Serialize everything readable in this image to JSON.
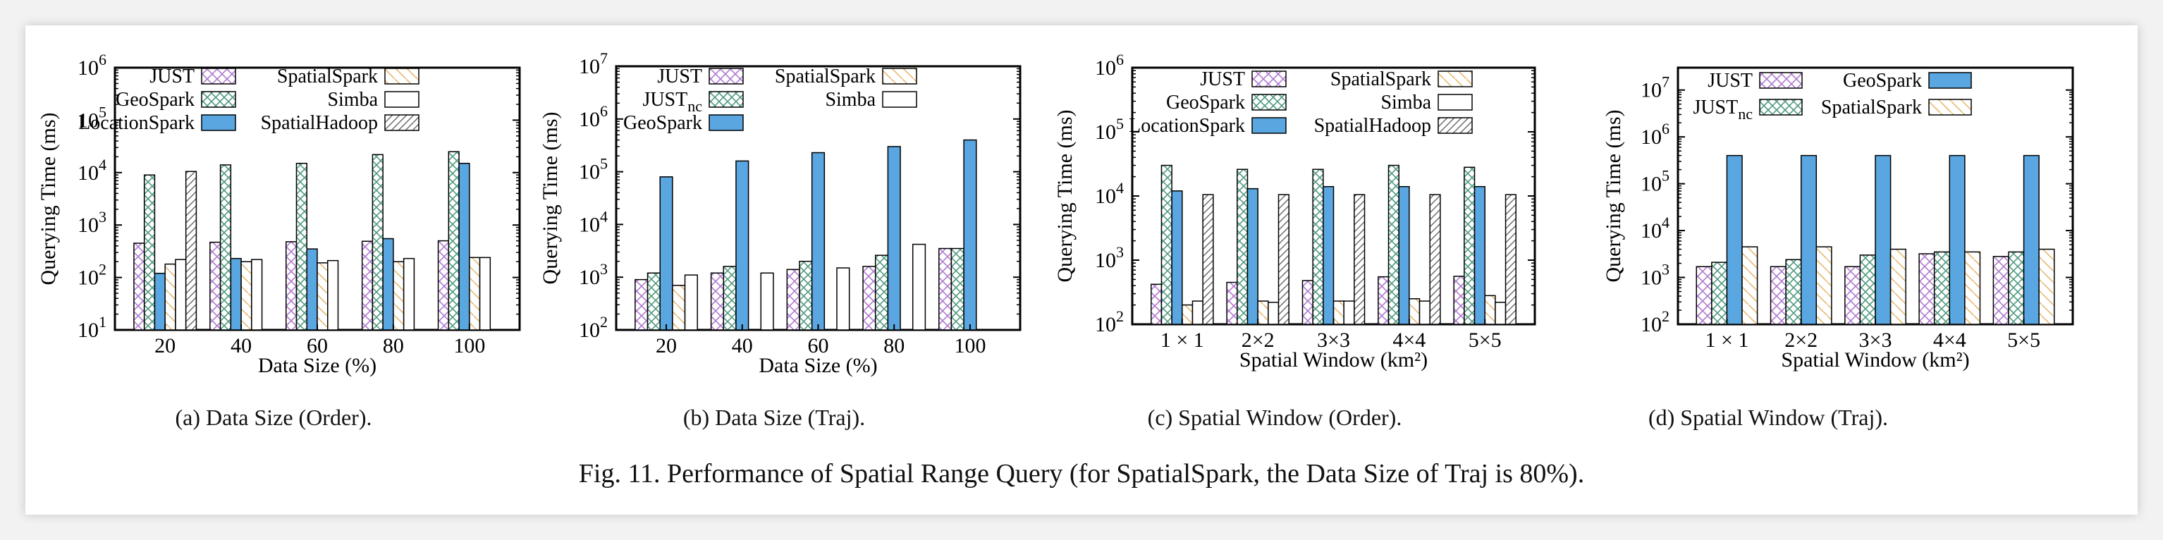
{
  "figure_caption": "Fig. 11.  Performance of Spatial Range Query (for SpatialSpark, the Data Size of Traj is 80%).",
  "colors": {
    "JUST": "#b07ad0",
    "JUST_nc": "#5aaa8a",
    "GeoSpark": "#5a9a8a",
    "GeoSpark_solid": "#5aa6e0",
    "LocationSpark": "#5aa6e0",
    "SpatialSpark": "#e8b870",
    "Simba": "#333333",
    "SpatialHadoop": "#333333"
  },
  "chart_data": [
    {
      "type": "bar",
      "caption": "(a)  Data Size (Order).",
      "ylabel": "Querying Time (ms)",
      "xlabel": "Data Size (%)",
      "yscale": "log",
      "ylim": [
        10,
        1000000
      ],
      "ytick_labels": [
        "10^1",
        "10^2",
        "10^3",
        "10^4",
        "10^5",
        "10^6"
      ],
      "categories": [
        "20",
        "40",
        "60",
        "80",
        "100"
      ],
      "legend": [
        [
          "JUST",
          "SpatialSpark"
        ],
        [
          "GeoSpark",
          "Simba"
        ],
        [
          "LocationSpark",
          "SpatialHadoop"
        ]
      ],
      "series": [
        {
          "name": "JUST",
          "pattern": "cross-purple",
          "values": [
            450,
            470,
            480,
            490,
            500
          ]
        },
        {
          "name": "GeoSpark",
          "pattern": "cross-green",
          "values": [
            9000,
            14000,
            15000,
            22000,
            25000
          ]
        },
        {
          "name": "LocationSpark",
          "pattern": "solid-blue",
          "values": [
            120,
            230,
            350,
            550,
            15000
          ]
        },
        {
          "name": "SpatialSpark",
          "pattern": "diag-orange",
          "values": [
            180,
            200,
            190,
            200,
            240
          ]
        },
        {
          "name": "Simba",
          "pattern": "plain",
          "values": [
            220,
            220,
            210,
            230,
            240
          ]
        },
        {
          "name": "SpatialHadoop",
          "pattern": "hatch-gray",
          "values": [
            10500,
            null,
            null,
            null,
            null
          ]
        }
      ]
    },
    {
      "type": "bar",
      "caption": "(b)  Data Size (Traj).",
      "ylabel": "Querying Time (ms)",
      "xlabel": "Data Size (%)",
      "yscale": "log",
      "ylim": [
        100,
        10000000
      ],
      "ytick_labels": [
        "10^2",
        "10^3",
        "10^4",
        "10^5",
        "10^6",
        "10^7"
      ],
      "categories": [
        "20",
        "40",
        "60",
        "80",
        "100"
      ],
      "legend": [
        [
          "JUST",
          "SpatialSpark"
        ],
        [
          "JUST_nc",
          "Simba"
        ],
        [
          "GeoSpark",
          ""
        ]
      ],
      "series": [
        {
          "name": "JUST",
          "pattern": "cross-purple",
          "values": [
            900,
            1200,
            1400,
            1600,
            3500
          ]
        },
        {
          "name": "JUST_nc",
          "pattern": "cross-green",
          "values": [
            1200,
            1600,
            2000,
            2600,
            3500
          ]
        },
        {
          "name": "GeoSpark",
          "pattern": "solid-blue",
          "values": [
            80000,
            160000,
            230000,
            300000,
            400000
          ]
        },
        {
          "name": "SpatialSpark",
          "pattern": "diag-orange",
          "values": [
            700,
            null,
            null,
            null,
            null
          ]
        },
        {
          "name": "Simba",
          "pattern": "plain",
          "values": [
            1100,
            1200,
            1500,
            4200,
            null
          ]
        }
      ]
    },
    {
      "type": "bar",
      "caption": "(c)  Spatial Window (Order).",
      "ylabel": "Querying Time (ms)",
      "xlabel": "Spatial Window (km²)",
      "yscale": "log",
      "ylim": [
        100,
        1000000
      ],
      "ytick_labels": [
        "10^2",
        "10^3",
        "10^4",
        "10^5",
        "10^6"
      ],
      "categories": [
        "1 × 1",
        "2×2",
        "3×3",
        "4×4",
        "5×5"
      ],
      "legend": [
        [
          "JUST",
          "SpatialSpark"
        ],
        [
          "GeoSpark",
          "Simba"
        ],
        [
          "LocationSpark",
          "SpatialHadoop"
        ]
      ],
      "series": [
        {
          "name": "JUST",
          "pattern": "cross-purple",
          "values": [
            420,
            450,
            480,
            550,
            560
          ]
        },
        {
          "name": "GeoSpark",
          "pattern": "cross-green",
          "values": [
            30000,
            26000,
            26000,
            30000,
            28000
          ]
        },
        {
          "name": "LocationSpark",
          "pattern": "solid-blue",
          "values": [
            12000,
            13000,
            14000,
            14000,
            14000
          ]
        },
        {
          "name": "SpatialSpark",
          "pattern": "diag-orange",
          "values": [
            200,
            230,
            230,
            250,
            280
          ]
        },
        {
          "name": "Simba",
          "pattern": "plain",
          "values": [
            230,
            220,
            230,
            230,
            220
          ]
        },
        {
          "name": "SpatialHadoop",
          "pattern": "hatch-gray",
          "values": [
            10500,
            10500,
            10500,
            10500,
            10500
          ]
        }
      ]
    },
    {
      "type": "bar",
      "caption": "(d)  Spatial Window (Traj).",
      "ylabel": "Querying Time (ms)",
      "xlabel": "Spatial Window (km²)",
      "yscale": "log",
      "ylim": [
        100,
        30000000
      ],
      "ytick_labels": [
        "10^2",
        "10^3",
        "10^4",
        "10^5",
        "10^6",
        "10^7"
      ],
      "categories": [
        "1 × 1",
        "2×2",
        "3×3",
        "4×4",
        "5×5"
      ],
      "legend": [
        [
          "JUST",
          "GeoSpark"
        ],
        [
          "JUST_nc",
          "SpatialSpark"
        ]
      ],
      "series": [
        {
          "name": "JUST",
          "pattern": "cross-purple",
          "values": [
            1700,
            1700,
            1700,
            3200,
            2800
          ]
        },
        {
          "name": "JUST_nc",
          "pattern": "cross-green",
          "values": [
            2100,
            2400,
            3000,
            3500,
            3500
          ]
        },
        {
          "name": "GeoSpark",
          "pattern": "solid-blue",
          "values": [
            400000,
            400000,
            400000,
            400000,
            400000
          ]
        },
        {
          "name": "SpatialSpark",
          "pattern": "diag-orange",
          "values": [
            4500,
            4500,
            4000,
            3500,
            4000
          ]
        }
      ]
    }
  ]
}
